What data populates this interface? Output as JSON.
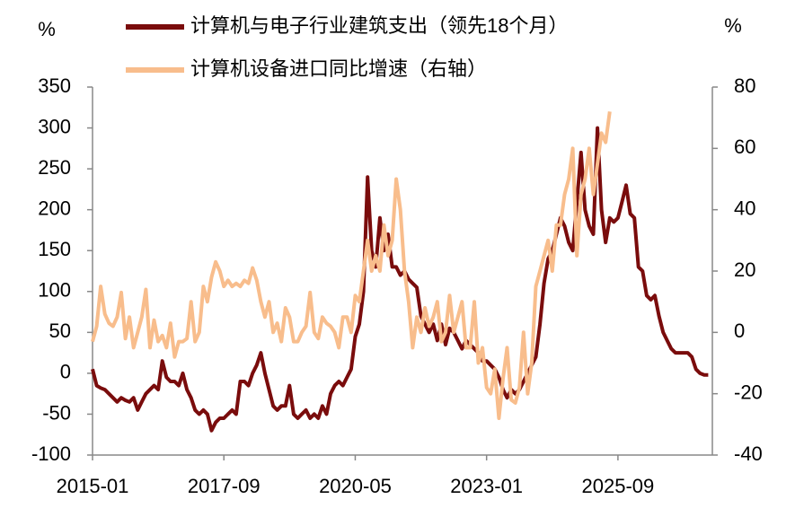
{
  "chart_data": {
    "type": "line",
    "series": [
      {
        "name": "计算机与电子行业建筑支出（领先18个月）",
        "color": "#7a0c0c",
        "values": [
          5,
          -15,
          -18,
          -20,
          -25,
          -30,
          -35,
          -30,
          -33,
          -35,
          -30,
          -45,
          -35,
          -25,
          -20,
          -15,
          -20,
          15,
          -5,
          -10,
          -10,
          -15,
          0,
          -20,
          -30,
          -45,
          -50,
          -45,
          -50,
          -70,
          -60,
          -55,
          -55,
          -50,
          -45,
          -50,
          -10,
          -10,
          -15,
          0,
          10,
          25,
          0,
          -20,
          -40,
          -45,
          -40,
          -40,
          -15,
          -50,
          -55,
          -50,
          -45,
          -55,
          -50,
          -55,
          -40,
          -50,
          -25,
          -15,
          -10,
          -15,
          -5,
          5,
          45,
          60,
          100,
          240,
          150,
          130,
          190,
          150,
          170,
          130,
          130,
          120,
          125,
          115,
          110,
          105,
          70,
          60,
          50,
          60,
          40,
          60,
          35,
          55,
          50,
          40,
          30,
          40,
          35,
          30,
          25,
          15,
          15,
          10,
          5,
          -5,
          -20,
          -30,
          -20,
          -25,
          -20,
          -10,
          0,
          10,
          20,
          60,
          110,
          140,
          150,
          170,
          190,
          180,
          160,
          150,
          210,
          270,
          200,
          180,
          170,
          300,
          200,
          160,
          190,
          185,
          190,
          210,
          230,
          195,
          190,
          130,
          125,
          95,
          90,
          95,
          70,
          50,
          40,
          30,
          25,
          25,
          25,
          25,
          20,
          5,
          0,
          -2,
          -2
        ]
      },
      {
        "name": "计算机设备进口同比增速（右轴）",
        "color": "#f8bd8c",
        "axis": "y2",
        "values": [
          -3,
          2,
          15,
          6,
          3,
          2,
          5,
          13,
          -2,
          5,
          -5,
          0,
          5,
          14,
          -5,
          4,
          -3,
          -1,
          -5,
          3,
          -8,
          -3,
          -3,
          -2,
          10,
          -3,
          0,
          15,
          10,
          18,
          23,
          20,
          15,
          17,
          15,
          16,
          15,
          17,
          16,
          21,
          17,
          10,
          5,
          10,
          0,
          3,
          -3,
          8,
          5,
          -3,
          -3,
          0,
          2,
          13,
          0,
          -2,
          5,
          3,
          2,
          0,
          -5,
          5,
          5,
          0,
          12,
          10,
          20,
          30,
          20,
          25,
          20,
          35,
          25,
          30,
          50,
          40,
          20,
          10,
          -5,
          5,
          0,
          8,
          2,
          5,
          10,
          -3,
          0,
          12,
          0,
          5,
          10,
          -5,
          -5,
          10,
          -10,
          -5,
          -18,
          -20,
          -12,
          -28,
          -15,
          -5,
          -22,
          -23,
          -18,
          0,
          -20,
          -10,
          15,
          20,
          25,
          30,
          20,
          35,
          35,
          45,
          50,
          60,
          25,
          45,
          50,
          60,
          45,
          55,
          65,
          62,
          72,
          null,
          null,
          null,
          null,
          null,
          null,
          null,
          null,
          null,
          null,
          null,
          null,
          null,
          null,
          null,
          null,
          null,
          null,
          null,
          null,
          null,
          null,
          null,
          null
        ]
      }
    ],
    "categories": [
      "2015-01",
      null,
      null,
      null,
      null,
      null,
      null,
      null,
      null,
      null,
      null,
      null,
      null,
      null,
      null,
      null,
      null,
      null,
      null,
      null,
      null,
      null,
      null,
      null,
      null,
      null,
      null,
      null,
      null,
      null,
      null,
      null,
      "2017-09",
      null,
      null,
      null,
      null,
      null,
      null,
      null,
      null,
      null,
      null,
      null,
      null,
      null,
      null,
      null,
      null,
      null,
      null,
      null,
      null,
      null,
      null,
      null,
      null,
      null,
      null,
      null,
      null,
      null,
      null,
      null,
      "2020-05",
      null,
      null,
      null,
      null,
      null,
      null,
      null,
      null,
      null,
      null,
      null,
      null,
      null,
      null,
      null,
      null,
      null,
      null,
      null,
      null,
      null,
      null,
      null,
      null,
      null,
      null,
      null,
      null,
      null,
      null,
      null,
      "2023-01",
      null,
      null,
      null,
      null,
      null,
      null,
      null,
      null,
      null,
      null,
      null,
      null,
      null,
      null,
      null,
      null,
      null,
      null,
      null,
      null,
      null,
      null,
      null,
      null,
      null,
      null,
      null,
      null,
      null,
      null,
      null,
      "2025-09",
      null,
      null,
      null,
      null,
      null,
      null,
      null,
      null,
      null,
      null,
      null,
      null,
      null,
      null,
      null,
      null,
      null,
      null,
      null,
      null,
      null,
      null
    ],
    "y_label": "%",
    "y2_label": "%",
    "ylim": [
      -100,
      350
    ],
    "yticks": [
      -100,
      -50,
      0,
      50,
      100,
      150,
      200,
      250,
      300,
      350
    ],
    "y2lim": [
      -40,
      80
    ],
    "y2ticks": [
      -40,
      -20,
      0,
      20,
      40,
      60,
      80
    ]
  }
}
